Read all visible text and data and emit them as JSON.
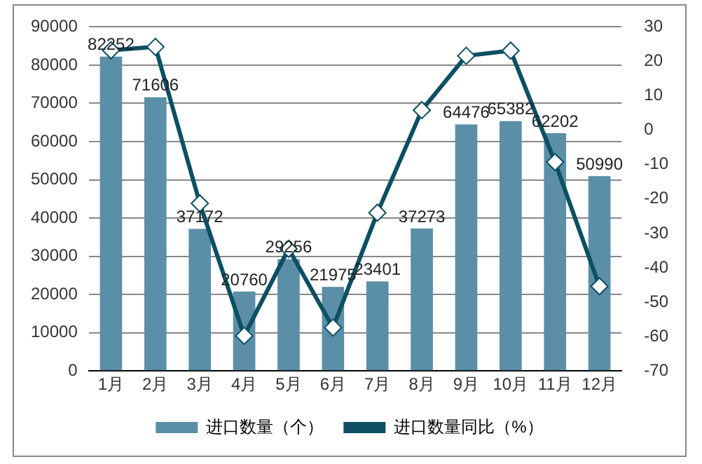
{
  "chart_data": {
    "type": "bar",
    "categories": [
      "1月",
      "2月",
      "3月",
      "4月",
      "5月",
      "6月",
      "7月",
      "8月",
      "9月",
      "10月",
      "11月",
      "12月"
    ],
    "series": [
      {
        "name": "进口数量（个）",
        "color": "#5b8fa8",
        "values": [
          82252,
          71606,
          37172,
          20760,
          29256,
          21975,
          23401,
          37273,
          64476,
          65382,
          62202,
          50990
        ],
        "value_labels": [
          "82252",
          "71606",
          "37172",
          "20760",
          "29256",
          "21975",
          "23401",
          "37273",
          "64476",
          "65382",
          "62202",
          "50990"
        ]
      },
      {
        "name": "进口数量同比（%）",
        "type": "line",
        "axis": "y2",
        "color": "#0d4f63",
        "values": [
          23.2,
          24.2,
          -21.3,
          -59.8,
          -34.5,
          -57.4,
          -24,
          5.8,
          21.6,
          23.1,
          -9.3,
          -45.4
        ]
      }
    ],
    "ylim": [
      0,
      90000
    ],
    "yticks": [
      0,
      10000,
      20000,
      30000,
      40000,
      50000,
      60000,
      70000,
      80000,
      90000
    ],
    "y2lim": [
      -70,
      30
    ],
    "y2ticks": [
      -70,
      -60,
      -50,
      -40,
      -30,
      -20,
      -10,
      0,
      10,
      20,
      30
    ],
    "grid": "y",
    "legend": "bottom",
    "marker": "diamond",
    "line_style": "solid"
  }
}
